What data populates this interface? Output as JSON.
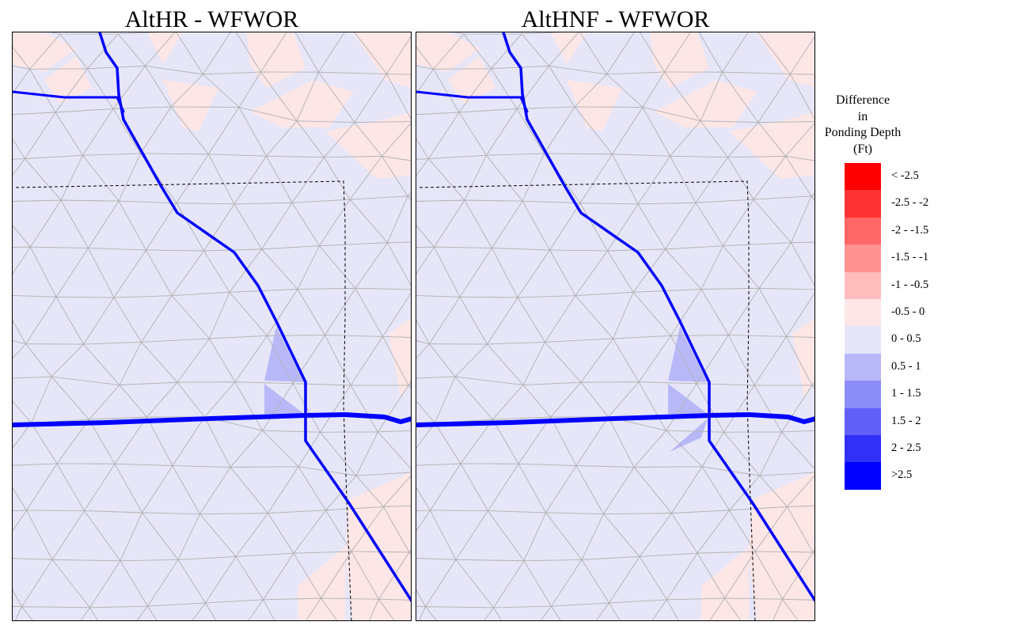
{
  "panels": [
    {
      "id": "left",
      "title": "AltHR - WFWOR"
    },
    {
      "id": "right",
      "title": "AltHNF - WFWOR"
    }
  ],
  "legend": {
    "title_lines": [
      "Difference",
      "in",
      "Ponding Depth",
      "(Ft)"
    ],
    "items": [
      {
        "label": "< -2.5",
        "color": "#ff0000"
      },
      {
        "label": "-2.5 - -2",
        "color": "#ff3333"
      },
      {
        "label": "-2 - -1.5",
        "color": "#ff6666"
      },
      {
        "label": "-1.5 - -1",
        "color": "#ff9191"
      },
      {
        "label": "-1 - -0.5",
        "color": "#ffbcbc"
      },
      {
        "label": "-0.5 - 0",
        "color": "#fde6e6"
      },
      {
        "label": "0 - 0.5",
        "color": "#e6e6f8"
      },
      {
        "label": "0.5 - 1",
        "color": "#b8b8f8"
      },
      {
        "label": "1 - 1.5",
        "color": "#8c8cf8"
      },
      {
        "label": "1.5 - 2",
        "color": "#6060f8"
      },
      {
        "label": "2 - 2.5",
        "color": "#3030f8"
      },
      {
        "label": ">2.5",
        "color": "#0000ff"
      }
    ]
  },
  "colors": {
    "mesh_line": "#b4b4b4",
    "canal": "#0000ff",
    "boundary": "#000000"
  }
}
